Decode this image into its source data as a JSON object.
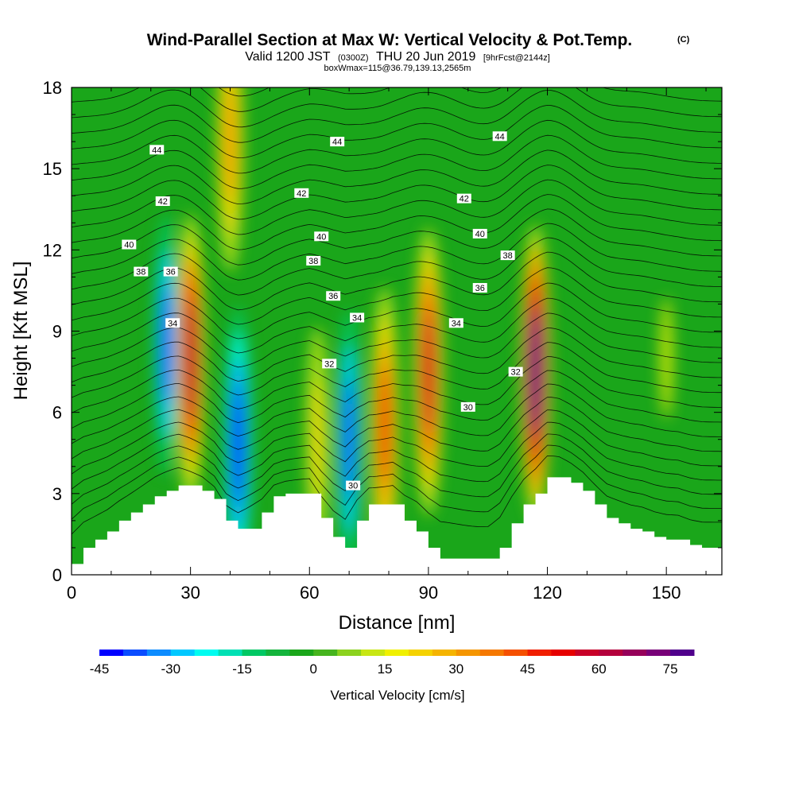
{
  "title": {
    "main": "Wind-Parallel Section at Max W: Vertical Velocity & Pot.Temp.",
    "copyright": "(C)",
    "valid_prefix": "Valid 1200 JST",
    "valid_utc": "(0300Z)",
    "valid_date": "THU 20 Jun 2019",
    "forecast": "[9hrFcst@2144z]",
    "box_info": "boxWmax=115@36.79,139.13,2565m"
  },
  "chart_data": {
    "type": "heatmap",
    "xlabel": "Distance [nm]",
    "ylabel": "Height [Kft MSL]",
    "xlim": [
      0,
      164
    ],
    "ylim": [
      0,
      18
    ],
    "x_ticks": [
      "0",
      "30",
      "60",
      "90",
      "120",
      "150"
    ],
    "x_tick_values": [
      0,
      30,
      60,
      90,
      120,
      150
    ],
    "y_ticks": [
      "0",
      "3",
      "6",
      "9",
      "12",
      "15",
      "18"
    ],
    "y_tick_values": [
      0,
      3,
      6,
      9,
      12,
      15,
      18
    ],
    "background_color": "#1aa61a",
    "velocity_features": [
      {
        "x": 24,
        "y": 8.5,
        "value": -40
      },
      {
        "x": 30,
        "y": 8,
        "value": 60
      },
      {
        "x": 42,
        "y": 4.8,
        "value": -45
      },
      {
        "x": 70,
        "y": 5,
        "value": -40
      },
      {
        "x": 79,
        "y": 5.5,
        "value": 45
      },
      {
        "x": 90,
        "y": 7.5,
        "value": 55
      },
      {
        "x": 117,
        "y": 7.5,
        "value": 75
      },
      {
        "x": 40,
        "y": 16,
        "value": 30
      },
      {
        "x": 62,
        "y": 5,
        "value": 20
      },
      {
        "x": 150,
        "y": 8,
        "value": 15
      }
    ],
    "terrain": [
      [
        0,
        0.4
      ],
      [
        3,
        1
      ],
      [
        6,
        1.3
      ],
      [
        9,
        1.6
      ],
      [
        12,
        2
      ],
      [
        15,
        2.3
      ],
      [
        18,
        2.6
      ],
      [
        21,
        2.9
      ],
      [
        24,
        3.1
      ],
      [
        27,
        3.3
      ],
      [
        33,
        3.1
      ],
      [
        36,
        2.8
      ],
      [
        39,
        2
      ],
      [
        42,
        1.7
      ],
      [
        48,
        2.3
      ],
      [
        51,
        2.9
      ],
      [
        54,
        3
      ],
      [
        60,
        3
      ],
      [
        63,
        2.1
      ],
      [
        66,
        1.4
      ],
      [
        69,
        1
      ],
      [
        72,
        2
      ],
      [
        75,
        2.6
      ],
      [
        81,
        2.6
      ],
      [
        84,
        2
      ],
      [
        87,
        1.6
      ],
      [
        90,
        1
      ],
      [
        93,
        0.6
      ],
      [
        102,
        0.6
      ],
      [
        105,
        0.6
      ],
      [
        108,
        1
      ],
      [
        111,
        1.9
      ],
      [
        114,
        2.6
      ],
      [
        117,
        3
      ],
      [
        120,
        3.6
      ],
      [
        123,
        3.6
      ],
      [
        126,
        3.4
      ],
      [
        129,
        3.1
      ],
      [
        132,
        2.6
      ],
      [
        135,
        2.1
      ],
      [
        138,
        1.9
      ],
      [
        141,
        1.7
      ],
      [
        144,
        1.6
      ],
      [
        147,
        1.4
      ],
      [
        150,
        1.3
      ],
      [
        153,
        1.3
      ],
      [
        156,
        1.1
      ],
      [
        159,
        1
      ],
      [
        162,
        1
      ],
      [
        164,
        1
      ]
    ],
    "contour_labels": [
      {
        "text": "44",
        "x": 21.5,
        "y": 15.7
      },
      {
        "text": "44",
        "x": 67,
        "y": 16
      },
      {
        "text": "44",
        "x": 108,
        "y": 16.2
      },
      {
        "text": "42",
        "x": 23,
        "y": 13.8
      },
      {
        "text": "42",
        "x": 58,
        "y": 14.1
      },
      {
        "text": "42",
        "x": 99,
        "y": 13.9
      },
      {
        "text": "40",
        "x": 14.5,
        "y": 12.2
      },
      {
        "text": "40",
        "x": 63,
        "y": 12.5
      },
      {
        "text": "40",
        "x": 103,
        "y": 12.6
      },
      {
        "text": "38",
        "x": 17.5,
        "y": 11.2
      },
      {
        "text": "38",
        "x": 61,
        "y": 11.6
      },
      {
        "text": "38",
        "x": 110,
        "y": 11.8
      },
      {
        "text": "36",
        "x": 25,
        "y": 11.2
      },
      {
        "text": "36",
        "x": 66,
        "y": 10.3
      },
      {
        "text": "36",
        "x": 103,
        "y": 10.6
      },
      {
        "text": "34",
        "x": 25.5,
        "y": 9.3
      },
      {
        "text": "34",
        "x": 72,
        "y": 9.5
      },
      {
        "text": "34",
        "x": 97,
        "y": 9.3
      },
      {
        "text": "32",
        "x": 65,
        "y": 7.8
      },
      {
        "text": "32",
        "x": 112,
        "y": 7.5
      },
      {
        "text": "30",
        "x": 100,
        "y": 6.2
      },
      {
        "text": "30",
        "x": 71,
        "y": 3.3
      }
    ],
    "colorbar": {
      "min": -45,
      "max": 80,
      "ticks": [
        "-45",
        "-30",
        "-15",
        "0",
        "15",
        "30",
        "45",
        "60",
        "75"
      ],
      "tick_values": [
        -45,
        -30,
        -15,
        0,
        15,
        30,
        45,
        60,
        75
      ],
      "label": "Vertical Velocity [cm/s]",
      "colors": [
        "#0000ff",
        "#0a4cff",
        "#0c8cff",
        "#00c8ff",
        "#00fcf0",
        "#00e0b4",
        "#00c864",
        "#14b43c",
        "#1aa61a",
        "#46b41e",
        "#8cd21e",
        "#c8e614",
        "#f0f000",
        "#f5d200",
        "#f5b400",
        "#f59600",
        "#f57800",
        "#f55000",
        "#f01e00",
        "#e60000",
        "#c80028",
        "#b4003c",
        "#96005a",
        "#780078",
        "#50008c"
      ]
    }
  }
}
